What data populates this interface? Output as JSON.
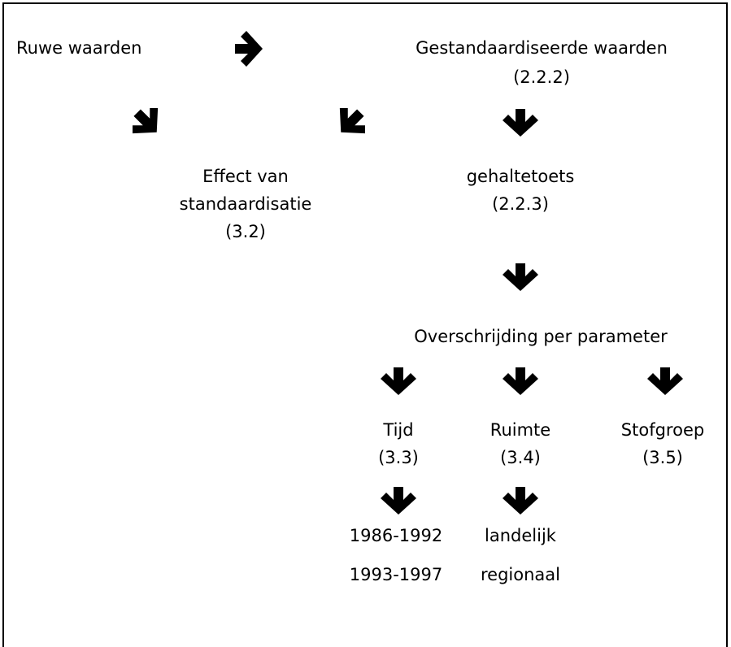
{
  "nodes": [
    {
      "lines": [
        "Ruwe waarden"
      ]
    },
    {
      "lines": [
        "Gestandaardiseerde waarden",
        "(2.2.2)"
      ]
    },
    {
      "lines": [
        "Effect van",
        "standaardisatie",
        "(3.2)"
      ]
    },
    {
      "lines": [
        "gehaltetoets",
        "(2.2.3)"
      ]
    },
    {
      "lines": [
        "Overschrijding per parameter"
      ]
    },
    {
      "lines": [
        "Tijd",
        "(3.3)"
      ]
    },
    {
      "lines": [
        "Ruimte",
        "(3.4)"
      ]
    },
    {
      "lines": [
        "Stofgroep",
        "(3.5)"
      ]
    },
    {
      "lines": [
        "1986-1992"
      ]
    },
    {
      "lines": [
        "1993-1997"
      ]
    },
    {
      "lines": [
        "landelijk"
      ]
    },
    {
      "lines": [
        "regionaal"
      ]
    }
  ]
}
